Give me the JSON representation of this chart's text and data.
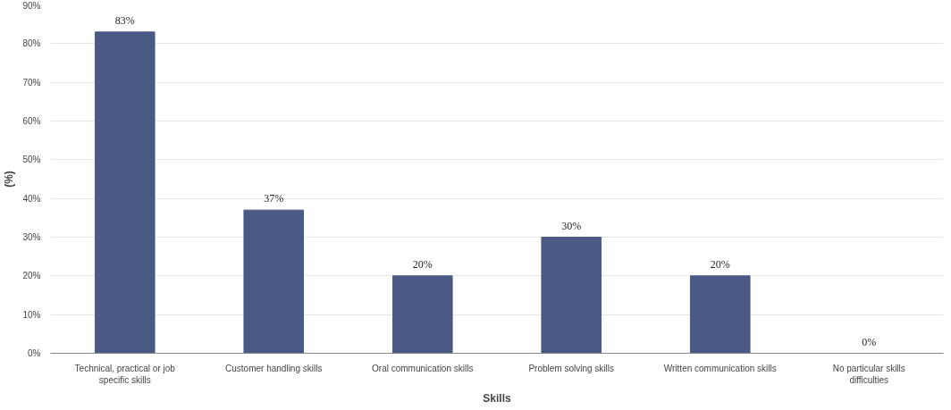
{
  "chart_data": {
    "type": "bar",
    "xlabel": "Skills",
    "ylabel": "(%)",
    "categories": [
      "Technical, practical or job specific skills",
      "Customer handling skills",
      "Oral communication skills",
      "Problem solving skills",
      "Written communication skills",
      "No particular skills difficulties"
    ],
    "values": [
      83,
      37,
      20,
      30,
      20,
      0
    ],
    "value_labels": [
      "83%",
      "37%",
      "20%",
      "30%",
      "20%",
      "0%"
    ],
    "color": "#4a5a85",
    "ylim": [
      0,
      90
    ],
    "yticks": [
      {
        "value": 0,
        "label": "0%"
      },
      {
        "value": 10,
        "label": "10%"
      },
      {
        "value": 20,
        "label": "20%"
      },
      {
        "value": 30,
        "label": "30%"
      },
      {
        "value": 40,
        "label": "40%"
      },
      {
        "value": 50,
        "label": "50%"
      },
      {
        "value": 60,
        "label": "60%"
      },
      {
        "value": 70,
        "label": "70%"
      },
      {
        "value": 80,
        "label": "80%"
      },
      {
        "value": 90,
        "label": "90%"
      }
    ],
    "grid": "y"
  }
}
